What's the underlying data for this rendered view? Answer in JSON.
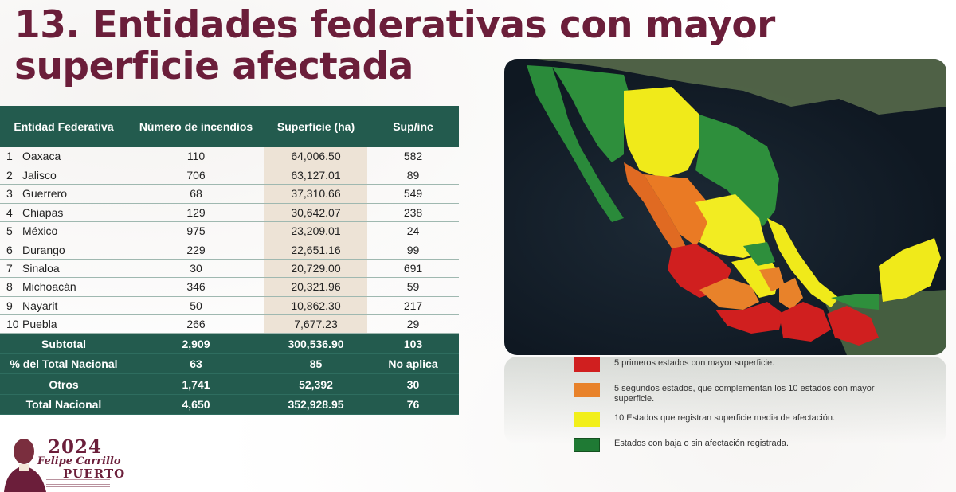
{
  "title": "13. Entidades federativas con mayor superficie afectada",
  "table": {
    "headers": [
      "Entidad Federativa",
      "Número de incendios",
      "Superficie (ha)",
      "Sup/inc"
    ],
    "rows": [
      {
        "rank": "1",
        "name": "Oaxaca",
        "fires": "110",
        "area": "64,006.50",
        "ratio": "582"
      },
      {
        "rank": "2",
        "name": "Jalisco",
        "fires": "706",
        "area": "63,127.01",
        "ratio": "89"
      },
      {
        "rank": "3",
        "name": "Guerrero",
        "fires": "68",
        "area": "37,310.66",
        "ratio": "549"
      },
      {
        "rank": "4",
        "name": "Chiapas",
        "fires": "129",
        "area": "30,642.07",
        "ratio": "238"
      },
      {
        "rank": "5",
        "name": "México",
        "fires": "975",
        "area": "23,209.01",
        "ratio": "24"
      },
      {
        "rank": "6",
        "name": "Durango",
        "fires": "229",
        "area": "22,651.16",
        "ratio": "99"
      },
      {
        "rank": "7",
        "name": "Sinaloa",
        "fires": "30",
        "area": "20,729.00",
        "ratio": "691"
      },
      {
        "rank": "8",
        "name": "Michoacán",
        "fires": "346",
        "area": "20,321.96",
        "ratio": "59"
      },
      {
        "rank": "9",
        "name": "Nayarit",
        "fires": "50",
        "area": "10,862.30",
        "ratio": "217"
      },
      {
        "rank": "10",
        "name": "Puebla",
        "fires": "266",
        "area": "7,677.23",
        "ratio": "29"
      }
    ],
    "summary": [
      {
        "label": "Subtotal",
        "fires": "2,909",
        "area": "300,536.90",
        "ratio": "103"
      },
      {
        "label": "% del Total Nacional",
        "fires": "63",
        "area": "85",
        "ratio": "No aplica"
      },
      {
        "label": "Otros",
        "fires": "1,741",
        "area": "52,392",
        "ratio": "30"
      },
      {
        "label": "Total Nacional",
        "fires": "4,650",
        "area": "352,928.95",
        "ratio": "76"
      }
    ]
  },
  "legend": [
    {
      "color": "#d01f1f",
      "text": "5 primeros estados con mayor superficie."
    },
    {
      "color": "#e8822a",
      "text": "5 segundos estados, que complementan los 10 estados con mayor superficie."
    },
    {
      "color": "#f2ef1a",
      "text": "10 Estados que registran superficie media de afectación."
    },
    {
      "color": "#1f7a34",
      "text": "Estados con baja o sin afectación registrada."
    }
  ],
  "logo": {
    "year": "2024",
    "name": "Felipe Carrillo",
    "place": "PUERTO"
  },
  "colors": {
    "title": "#6b1e3a",
    "table_header": "#235b4e",
    "area_column": "#ede3d6"
  }
}
